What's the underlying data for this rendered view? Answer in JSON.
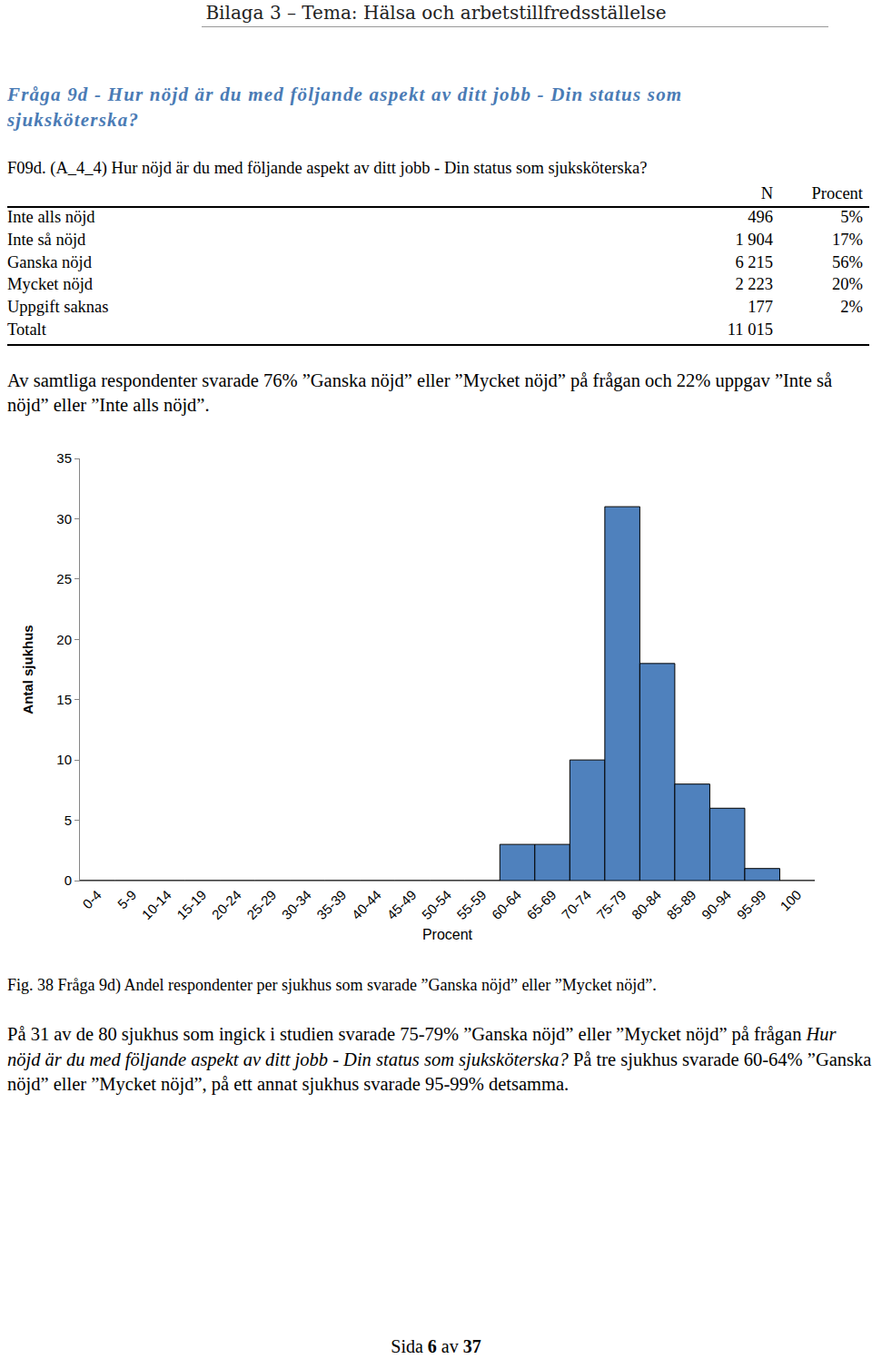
{
  "header": "Bilaga 3 – Tema: Hälsa och arbetstillfredsställelse",
  "heading": "Fråga 9d - Hur nöjd är du med följande aspekt av ditt jobb - Din status som sjuksköterska?",
  "question": "F09d. (A_4_4) Hur nöjd är du med följande aspekt av ditt jobb - Din status som sjuksköterska?",
  "table": {
    "columns": [
      "N",
      "Procent"
    ],
    "rows": [
      [
        "Inte alls nöjd",
        "496",
        "5%"
      ],
      [
        "Inte så nöjd",
        "1 904",
        "17%"
      ],
      [
        "Ganska nöjd",
        "6 215",
        "56%"
      ],
      [
        "Mycket nöjd",
        "2 223",
        "20%"
      ],
      [
        "Uppgift saknas",
        "177",
        "2%"
      ],
      [
        "Totalt",
        "11 015",
        null
      ]
    ]
  },
  "summary": "Av samtliga respondenter svarade 76% ”Ganska nöjd” eller ”Mycket nöjd” på frågan och 22% uppgav ”Inte så nöjd” eller ”Inte alls nöjd”.",
  "chart_data": {
    "type": "bar",
    "categories": [
      "0-4",
      "5-9",
      "10-14",
      "15-19",
      "20-24",
      "25-29",
      "30-34",
      "35-39",
      "40-44",
      "45-49",
      "50-54",
      "55-59",
      "60-64",
      "65-69",
      "70-74",
      "75-79",
      "80-84",
      "85-89",
      "90-94",
      "95-99",
      "100"
    ],
    "values": [
      0,
      0,
      0,
      0,
      0,
      0,
      0,
      0,
      0,
      0,
      0,
      0,
      3,
      3,
      10,
      31,
      18,
      8,
      6,
      1,
      0
    ],
    "color": "#4f81bd",
    "xlabel": "Procent",
    "ylabel": "Antal sjukhus",
    "ylim": [
      0,
      35
    ],
    "yticks": [
      0,
      5,
      10,
      15,
      20,
      25,
      30,
      35
    ],
    "grid": false
  },
  "caption": "Fig. 38 Fråga 9d) Andel respondenter per sjukhus som svarade ”Ganska nöjd” eller ”Mycket nöjd”.",
  "paragraph": [
    {
      "text": "På 31 av de 80 sjukhus som ingick i studien svarade 75-79% ”Ganska nöjd” eller ”Mycket nöjd” på frågan ",
      "italic": false
    },
    {
      "text": "Hur nöjd är du med följande aspekt av ditt jobb - Din status som sjuksköterska?",
      "italic": true
    },
    {
      "text": " På tre sjukhus svarade 60-64% ”Ganska nöjd” eller ”Mycket nöjd”, på ett annat sjukhus svarade 95-99% detsamma.",
      "italic": false
    }
  ],
  "footer": [
    {
      "text": "Sida ",
      "bold": false
    },
    {
      "text": "6",
      "bold": true
    },
    {
      "text": " av ",
      "bold": false
    },
    {
      "text": "37",
      "bold": true
    }
  ]
}
